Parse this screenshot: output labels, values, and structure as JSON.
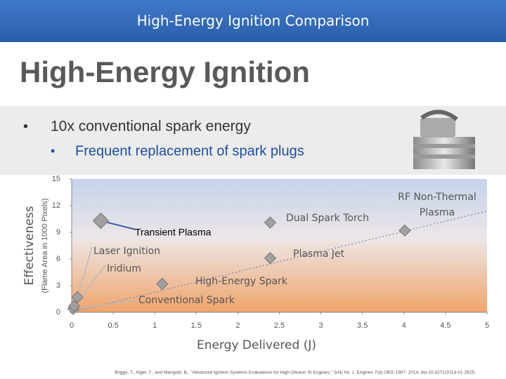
{
  "header": {
    "title": "High-Energy Ignition Comparison"
  },
  "slide": {
    "title": "High-Energy Ignition",
    "bullets": [
      {
        "marker": "•",
        "text": "10x conventional spark energy"
      },
      {
        "marker": "•",
        "text": "Frequent replacement of spark plugs"
      }
    ],
    "citation": "Briggs, T., Alger, T., and Mangold, B., \"Advanced Ignition Systems Evaluations for High-Dilution SI Engines,\" SAE Int. J. Engines 7(4):1902-1907, 2014, doi:10.4271/2014-01-2625."
  },
  "chart_data": {
    "type": "scatter",
    "y_label": "Effectiveness",
    "y_sublabel": "(Flame Area in 1000 Pixels)",
    "x_label": "Energy Delivered (J)",
    "xlim": [
      0,
      5
    ],
    "xticks": [
      0,
      0.5,
      1,
      1.5,
      2,
      2.5,
      3,
      3.5,
      4,
      4.5,
      5
    ],
    "ylim": [
      0,
      15
    ],
    "yticks": [
      0,
      3,
      6,
      9,
      12,
      15
    ],
    "color": "#a0a0a0",
    "points": [
      {
        "label": [
          "Conventional Spark"
        ],
        "x": 0.02,
        "y": 0.4
      },
      {
        "label": [
          "Iridium"
        ],
        "x": 0.03,
        "y": 0.7
      },
      {
        "label": [
          "Laser Ignition"
        ],
        "x": 0.07,
        "y": 1.7
      },
      {
        "label": [
          "High-Energy Spark"
        ],
        "x": 1.09,
        "y": 3.2
      },
      {
        "label": [
          "Plasma Jet"
        ],
        "x": 2.39,
        "y": 6.1
      },
      {
        "label": [
          "Dual Spark Torch"
        ],
        "x": 2.39,
        "y": 10.1
      },
      {
        "label": [
          "RF Non-Thermal",
          "Plasma"
        ],
        "x": 4.01,
        "y": 9.2
      },
      {
        "label": [
          "Transient Plasma"
        ],
        "x": 0.35,
        "y": 10.3
      }
    ],
    "trendline": {
      "x": [
        0,
        5
      ],
      "values": [
        0,
        11.4
      ]
    }
  }
}
